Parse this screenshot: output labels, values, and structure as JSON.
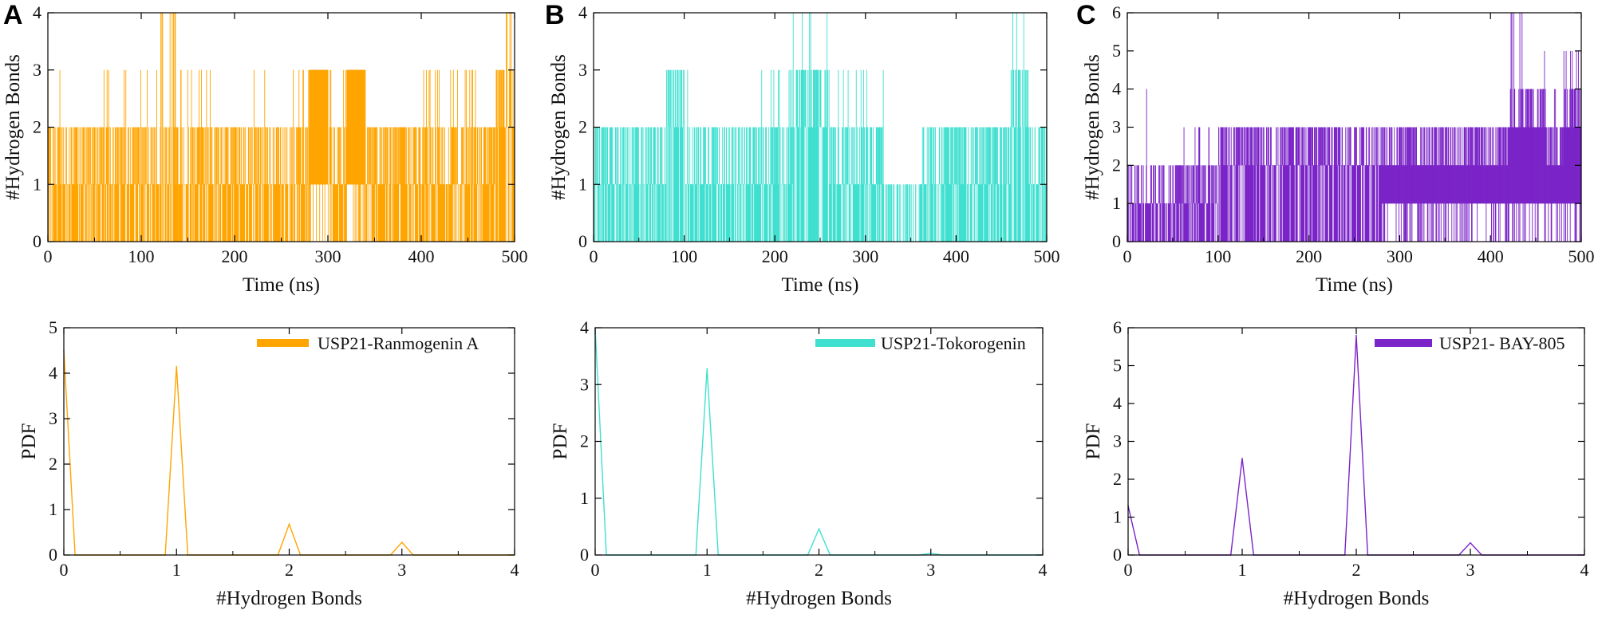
{
  "figure": {
    "panels": [
      {
        "letter": "A",
        "legend": "USP21-Ranmogenin A",
        "color": "#FFA500"
      },
      {
        "letter": "B",
        "legend": "USP21-Tokorogenin",
        "color": "#40E0D0"
      },
      {
        "letter": "C",
        "legend": "USP21- BAY-805",
        "color": "#7B24C8"
      }
    ]
  },
  "chart_data": [
    {
      "type": "line",
      "panel": "A",
      "title": "",
      "xlabel": "Time (ns)",
      "ylabel": "#Hydrogen Bonds",
      "xlim": [
        0,
        500
      ],
      "ylim": [
        0,
        4
      ],
      "xticks": [
        0,
        100,
        200,
        300,
        400,
        500
      ],
      "yticks": [
        0,
        1,
        2,
        3,
        4
      ],
      "series": [
        {
          "x": [
            0,
            20,
            40,
            60,
            80,
            100,
            120,
            140,
            160,
            180,
            200,
            220,
            240,
            260,
            280,
            300,
            320,
            340,
            360,
            380,
            400,
            420,
            440,
            460,
            480,
            500
          ],
          "min": [
            0,
            0,
            0,
            0,
            0,
            0,
            0,
            0,
            0,
            0,
            0,
            0,
            0,
            0,
            1,
            0,
            1,
            0,
            0,
            0,
            0,
            0,
            0,
            0,
            0,
            0
          ],
          "typical": [
            1,
            1,
            1,
            1,
            1,
            1,
            1,
            1,
            1,
            1,
            1,
            1,
            1,
            1,
            3,
            1,
            3,
            1,
            1,
            1,
            1,
            1,
            1,
            1,
            2,
            1
          ],
          "max": [
            3,
            2,
            2,
            3,
            3,
            3,
            4,
            3,
            3,
            2,
            2,
            3,
            2,
            3,
            3,
            3,
            3,
            2,
            2,
            2,
            3,
            3,
            3,
            2,
            4,
            4
          ]
        }
      ]
    },
    {
      "type": "line",
      "panel": "B",
      "title": "",
      "xlabel": "Time (ns)",
      "ylabel": "#Hydrogen Bonds",
      "xlim": [
        0,
        500
      ],
      "ylim": [
        0,
        4
      ],
      "xticks": [
        0,
        100,
        200,
        300,
        400,
        500
      ],
      "yticks": [
        0,
        1,
        2,
        3,
        4
      ],
      "series": [
        {
          "x": [
            0,
            20,
            40,
            60,
            80,
            100,
            120,
            140,
            160,
            180,
            200,
            220,
            240,
            260,
            280,
            300,
            320,
            340,
            360,
            380,
            400,
            420,
            440,
            460,
            480,
            500
          ],
          "min": [
            0,
            0,
            0,
            0,
            0,
            0,
            0,
            0,
            0,
            0,
            0,
            0,
            0,
            0,
            0,
            0,
            0,
            0,
            0,
            0,
            0,
            0,
            0,
            0,
            0,
            0
          ],
          "typical": [
            1,
            1,
            1,
            1,
            2,
            1,
            1,
            1,
            1,
            1,
            1,
            2,
            2,
            1,
            1,
            1,
            0,
            0,
            1,
            1,
            1,
            1,
            1,
            2,
            1,
            1
          ],
          "max": [
            2,
            2,
            2,
            2,
            3,
            3,
            2,
            2,
            2,
            3,
            3,
            4,
            4,
            3,
            3,
            3,
            1,
            1,
            2,
            2,
            2,
            2,
            2,
            4,
            2,
            2
          ]
        }
      ]
    },
    {
      "type": "line",
      "panel": "C",
      "title": "",
      "xlabel": "Time (ns)",
      "ylabel": "#Hydrogen Bonds",
      "xlim": [
        0,
        500
      ],
      "ylim": [
        0,
        6
      ],
      "xticks": [
        0,
        100,
        200,
        300,
        400,
        500
      ],
      "yticks": [
        0,
        1,
        2,
        3,
        4,
        5,
        6
      ],
      "series": [
        {
          "x": [
            0,
            20,
            40,
            60,
            80,
            100,
            120,
            140,
            160,
            180,
            200,
            220,
            240,
            260,
            280,
            300,
            320,
            340,
            360,
            380,
            400,
            420,
            440,
            460,
            480,
            500
          ],
          "min": [
            0,
            0,
            0,
            0,
            0,
            0,
            0,
            0,
            0,
            0,
            0,
            0,
            0,
            0,
            1,
            1,
            1,
            1,
            1,
            1,
            1,
            1,
            1,
            1,
            1,
            1
          ],
          "typical": [
            1,
            1,
            1,
            1,
            1,
            2,
            2,
            2,
            2,
            2,
            2,
            2,
            2,
            2,
            2,
            2,
            2,
            2,
            2,
            2,
            2,
            3,
            3,
            2,
            3,
            3
          ],
          "max": [
            2,
            4,
            2,
            3,
            3,
            3,
            3,
            3,
            3,
            3,
            3,
            3,
            3,
            3,
            3,
            3,
            3,
            3,
            3,
            3,
            3,
            6,
            5,
            4,
            5,
            6
          ]
        }
      ]
    },
    {
      "type": "line",
      "panel": "A",
      "title": "",
      "xlabel": "#Hydrogen Bonds",
      "ylabel": "PDF",
      "xlim": [
        0,
        4
      ],
      "ylim": [
        0,
        5
      ],
      "xticks": [
        0,
        1,
        2,
        3,
        4
      ],
      "yticks": [
        0,
        1,
        2,
        3,
        4,
        5
      ],
      "series": [
        {
          "name": "USP21-Ranmogenin A",
          "x": [
            0,
            0.1,
            0.9,
            1,
            1.1,
            1.9,
            2,
            2.1,
            2.9,
            3,
            3.1,
            4
          ],
          "y": [
            4.5,
            0,
            0,
            4.15,
            0,
            0,
            0.68,
            0,
            0,
            0.28,
            0,
            0
          ]
        }
      ]
    },
    {
      "type": "line",
      "panel": "B",
      "title": "",
      "xlabel": "#Hydrogen Bonds",
      "ylabel": "PDF",
      "xlim": [
        0,
        4
      ],
      "ylim": [
        0,
        4
      ],
      "xticks": [
        0,
        1,
        2,
        3,
        4
      ],
      "yticks": [
        0,
        1,
        2,
        3,
        4
      ],
      "series": [
        {
          "name": "USP21-Tokorogenin",
          "x": [
            0,
            0.1,
            0.9,
            1,
            1.1,
            1.9,
            2,
            2.1,
            2.9,
            3,
            3.1,
            4
          ],
          "y": [
            4.0,
            0,
            0,
            3.28,
            0,
            0,
            0.46,
            0,
            0,
            0.03,
            0,
            0
          ]
        }
      ]
    },
    {
      "type": "line",
      "panel": "C",
      "title": "",
      "xlabel": "#Hydrogen Bonds",
      "ylabel": "PDF",
      "xlim": [
        0,
        4
      ],
      "ylim": [
        0,
        6
      ],
      "xticks": [
        0,
        1,
        2,
        3,
        4
      ],
      "yticks": [
        0,
        1,
        2,
        3,
        4,
        5,
        6
      ],
      "series": [
        {
          "name": "USP21- BAY-805",
          "x": [
            0,
            0.1,
            0.9,
            1,
            1.1,
            1.9,
            2,
            2.1,
            2.9,
            3,
            3.1,
            4
          ],
          "y": [
            1.3,
            0,
            0,
            2.55,
            0,
            0,
            5.8,
            0,
            0,
            0.32,
            0,
            0
          ]
        }
      ]
    }
  ]
}
